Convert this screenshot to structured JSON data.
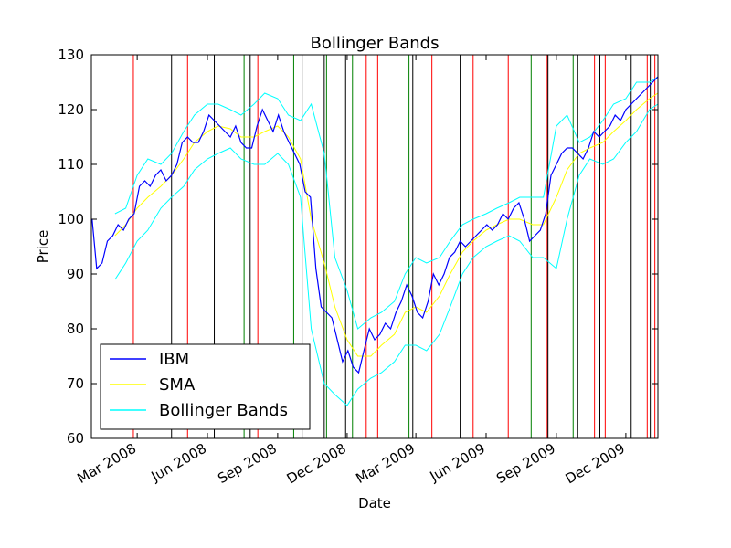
{
  "chart_data": {
    "type": "line",
    "title": "Bollinger Bands",
    "xlabel": "Date",
    "ylabel": "Price",
    "ylim": [
      60,
      130
    ],
    "xlim": [
      "2008-01-01",
      "2010-01-12"
    ],
    "grid": false,
    "legend_position": "lower-left",
    "y_ticks": [
      60,
      70,
      80,
      90,
      100,
      110,
      120,
      130
    ],
    "x_ticks": [
      {
        "date": "2008-03-01",
        "label": "Mar 2008"
      },
      {
        "date": "2008-06-01",
        "label": "Jun 2008"
      },
      {
        "date": "2008-09-01",
        "label": "Sep 2008"
      },
      {
        "date": "2008-12-01",
        "label": "Dec 2008"
      },
      {
        "date": "2009-03-01",
        "label": "Mar 2009"
      },
      {
        "date": "2009-06-01",
        "label": "Jun 2009"
      },
      {
        "date": "2009-09-01",
        "label": "Sep 2009"
      },
      {
        "date": "2009-12-01",
        "label": "Dec 2009"
      }
    ],
    "series": [
      {
        "name": "IBM",
        "color": "#0000ff",
        "points": [
          [
            "2008-01-02",
            100
          ],
          [
            "2008-01-08",
            91
          ],
          [
            "2008-01-15",
            92
          ],
          [
            "2008-01-22",
            96
          ],
          [
            "2008-01-29",
            97
          ],
          [
            "2008-02-05",
            99
          ],
          [
            "2008-02-12",
            98
          ],
          [
            "2008-02-19",
            100
          ],
          [
            "2008-02-26",
            101
          ],
          [
            "2008-03-04",
            106
          ],
          [
            "2008-03-11",
            107
          ],
          [
            "2008-03-18",
            106
          ],
          [
            "2008-03-25",
            108
          ],
          [
            "2008-04-01",
            109
          ],
          [
            "2008-04-08",
            107
          ],
          [
            "2008-04-15",
            108
          ],
          [
            "2008-04-22",
            110
          ],
          [
            "2008-04-29",
            114
          ],
          [
            "2008-05-06",
            115
          ],
          [
            "2008-05-13",
            114
          ],
          [
            "2008-05-20",
            114
          ],
          [
            "2008-05-27",
            116
          ],
          [
            "2008-06-03",
            119
          ],
          [
            "2008-06-10",
            118
          ],
          [
            "2008-06-17",
            117
          ],
          [
            "2008-06-24",
            116
          ],
          [
            "2008-07-01",
            115
          ],
          [
            "2008-07-08",
            117
          ],
          [
            "2008-07-15",
            114
          ],
          [
            "2008-07-22",
            113
          ],
          [
            "2008-07-29",
            113
          ],
          [
            "2008-08-05",
            117
          ],
          [
            "2008-08-12",
            120
          ],
          [
            "2008-08-19",
            118
          ],
          [
            "2008-08-26",
            116
          ],
          [
            "2008-09-02",
            119
          ],
          [
            "2008-09-09",
            116
          ],
          [
            "2008-09-16",
            114
          ],
          [
            "2008-09-23",
            112
          ],
          [
            "2008-09-30",
            110
          ],
          [
            "2008-10-07",
            105
          ],
          [
            "2008-10-14",
            104
          ],
          [
            "2008-10-21",
            91
          ],
          [
            "2008-10-28",
            84
          ],
          [
            "2008-11-04",
            83
          ],
          [
            "2008-11-11",
            82
          ],
          [
            "2008-11-18",
            78
          ],
          [
            "2008-11-25",
            74
          ],
          [
            "2008-12-02",
            76
          ],
          [
            "2008-12-09",
            73
          ],
          [
            "2008-12-16",
            72
          ],
          [
            "2008-12-23",
            76
          ],
          [
            "2008-12-30",
            80
          ],
          [
            "2009-01-06",
            78
          ],
          [
            "2009-01-13",
            79
          ],
          [
            "2009-01-20",
            81
          ],
          [
            "2009-01-27",
            80
          ],
          [
            "2009-02-03",
            83
          ],
          [
            "2009-02-10",
            85
          ],
          [
            "2009-02-17",
            88
          ],
          [
            "2009-02-24",
            86
          ],
          [
            "2009-03-03",
            83
          ],
          [
            "2009-03-10",
            82
          ],
          [
            "2009-03-17",
            85
          ],
          [
            "2009-03-24",
            90
          ],
          [
            "2009-03-31",
            88
          ],
          [
            "2009-04-07",
            90
          ],
          [
            "2009-04-14",
            93
          ],
          [
            "2009-04-21",
            94
          ],
          [
            "2009-04-28",
            96
          ],
          [
            "2009-05-05",
            95
          ],
          [
            "2009-05-12",
            96
          ],
          [
            "2009-05-19",
            97
          ],
          [
            "2009-05-26",
            98
          ],
          [
            "2009-06-02",
            99
          ],
          [
            "2009-06-09",
            98
          ],
          [
            "2009-06-16",
            99
          ],
          [
            "2009-06-23",
            101
          ],
          [
            "2009-06-30",
            100
          ],
          [
            "2009-07-07",
            102
          ],
          [
            "2009-07-14",
            103
          ],
          [
            "2009-07-21",
            100
          ],
          [
            "2009-07-28",
            96
          ],
          [
            "2009-08-04",
            97
          ],
          [
            "2009-08-11",
            98
          ],
          [
            "2009-08-18",
            101
          ],
          [
            "2009-08-25",
            108
          ],
          [
            "2009-09-01",
            110
          ],
          [
            "2009-09-08",
            112
          ],
          [
            "2009-09-15",
            113
          ],
          [
            "2009-09-22",
            113
          ],
          [
            "2009-09-29",
            112
          ],
          [
            "2009-10-06",
            111
          ],
          [
            "2009-10-13",
            113
          ],
          [
            "2009-10-20",
            116
          ],
          [
            "2009-10-27",
            115
          ],
          [
            "2009-11-03",
            116
          ],
          [
            "2009-11-10",
            117
          ],
          [
            "2009-11-17",
            119
          ],
          [
            "2009-11-24",
            118
          ],
          [
            "2009-12-01",
            120
          ],
          [
            "2009-12-08",
            121
          ],
          [
            "2009-12-15",
            122
          ],
          [
            "2009-12-22",
            123
          ],
          [
            "2009-12-29",
            124
          ],
          [
            "2010-01-05",
            125
          ],
          [
            "2010-01-12",
            126
          ]
        ]
      },
      {
        "name": "SMA",
        "color": "#ffff00",
        "points": [
          [
            "2008-02-01",
            97
          ],
          [
            "2008-02-15",
            99
          ],
          [
            "2008-03-01",
            102
          ],
          [
            "2008-03-15",
            104
          ],
          [
            "2008-04-01",
            106
          ],
          [
            "2008-04-15",
            108
          ],
          [
            "2008-05-01",
            111
          ],
          [
            "2008-05-15",
            114
          ],
          [
            "2008-06-01",
            116
          ],
          [
            "2008-06-15",
            117
          ],
          [
            "2008-07-01",
            116.5
          ],
          [
            "2008-07-15",
            115
          ],
          [
            "2008-08-01",
            115
          ],
          [
            "2008-08-15",
            116
          ],
          [
            "2008-09-01",
            117
          ],
          [
            "2008-09-15",
            115
          ],
          [
            "2008-10-01",
            111
          ],
          [
            "2008-10-15",
            100
          ],
          [
            "2008-11-01",
            92
          ],
          [
            "2008-11-15",
            84
          ],
          [
            "2008-12-01",
            78
          ],
          [
            "2008-12-15",
            75
          ],
          [
            "2009-01-01",
            75
          ],
          [
            "2009-01-15",
            77
          ],
          [
            "2009-02-01",
            79
          ],
          [
            "2009-02-15",
            83
          ],
          [
            "2009-03-01",
            84
          ],
          [
            "2009-03-15",
            83
          ],
          [
            "2009-04-01",
            86
          ],
          [
            "2009-04-15",
            90
          ],
          [
            "2009-05-01",
            94
          ],
          [
            "2009-05-15",
            96
          ],
          [
            "2009-06-01",
            98
          ],
          [
            "2009-06-15",
            99
          ],
          [
            "2009-07-01",
            100
          ],
          [
            "2009-07-15",
            100
          ],
          [
            "2009-08-01",
            99
          ],
          [
            "2009-08-15",
            99
          ],
          [
            "2009-09-01",
            104
          ],
          [
            "2009-09-15",
            109
          ],
          [
            "2009-10-01",
            112
          ],
          [
            "2009-10-15",
            113
          ],
          [
            "2009-11-01",
            114
          ],
          [
            "2009-11-15",
            116
          ],
          [
            "2009-12-01",
            118
          ],
          [
            "2009-12-15",
            120
          ],
          [
            "2010-01-01",
            122
          ],
          [
            "2010-01-12",
            123
          ]
        ]
      },
      {
        "name": "Bollinger Bands",
        "color": "#00ffff",
        "upper": [
          [
            "2008-02-01",
            101
          ],
          [
            "2008-02-15",
            102
          ],
          [
            "2008-03-01",
            108
          ],
          [
            "2008-03-15",
            111
          ],
          [
            "2008-04-01",
            110
          ],
          [
            "2008-04-15",
            112
          ],
          [
            "2008-05-01",
            116
          ],
          [
            "2008-05-15",
            119
          ],
          [
            "2008-06-01",
            121
          ],
          [
            "2008-06-15",
            121
          ],
          [
            "2008-07-01",
            120
          ],
          [
            "2008-07-15",
            119
          ],
          [
            "2008-08-01",
            121
          ],
          [
            "2008-08-15",
            123
          ],
          [
            "2008-09-01",
            122
          ],
          [
            "2008-09-15",
            119
          ],
          [
            "2008-10-01",
            118
          ],
          [
            "2008-10-15",
            121
          ],
          [
            "2008-11-01",
            112
          ],
          [
            "2008-11-15",
            93
          ],
          [
            "2008-12-01",
            87
          ],
          [
            "2008-12-15",
            80
          ],
          [
            "2009-01-01",
            82
          ],
          [
            "2009-01-15",
            83
          ],
          [
            "2009-02-01",
            85
          ],
          [
            "2009-02-15",
            90
          ],
          [
            "2009-03-01",
            93
          ],
          [
            "2009-03-15",
            92
          ],
          [
            "2009-04-01",
            93
          ],
          [
            "2009-04-15",
            96
          ],
          [
            "2009-05-01",
            99
          ],
          [
            "2009-05-15",
            100
          ],
          [
            "2009-06-01",
            101
          ],
          [
            "2009-06-15",
            102
          ],
          [
            "2009-07-01",
            103
          ],
          [
            "2009-07-15",
            104
          ],
          [
            "2009-08-01",
            104
          ],
          [
            "2009-08-15",
            104
          ],
          [
            "2009-09-01",
            117
          ],
          [
            "2009-09-15",
            119
          ],
          [
            "2009-10-01",
            114
          ],
          [
            "2009-10-15",
            115
          ],
          [
            "2009-11-01",
            118
          ],
          [
            "2009-11-15",
            121
          ],
          [
            "2009-12-01",
            122
          ],
          [
            "2009-12-15",
            125
          ],
          [
            "2010-01-01",
            125
          ],
          [
            "2010-01-12",
            126
          ]
        ],
        "lower": [
          [
            "2008-02-01",
            89
          ],
          [
            "2008-02-15",
            92
          ],
          [
            "2008-03-01",
            96
          ],
          [
            "2008-03-15",
            98
          ],
          [
            "2008-04-01",
            102
          ],
          [
            "2008-04-15",
            104
          ],
          [
            "2008-05-01",
            106
          ],
          [
            "2008-05-15",
            109
          ],
          [
            "2008-06-01",
            111
          ],
          [
            "2008-06-15",
            112
          ],
          [
            "2008-07-01",
            113
          ],
          [
            "2008-07-15",
            111
          ],
          [
            "2008-08-01",
            110
          ],
          [
            "2008-08-15",
            110
          ],
          [
            "2008-09-01",
            112
          ],
          [
            "2008-09-15",
            110
          ],
          [
            "2008-10-01",
            104
          ],
          [
            "2008-10-15",
            80
          ],
          [
            "2008-11-01",
            70
          ],
          [
            "2008-11-15",
            68
          ],
          [
            "2008-12-01",
            66
          ],
          [
            "2008-12-15",
            69
          ],
          [
            "2009-01-01",
            71
          ],
          [
            "2009-01-15",
            72
          ],
          [
            "2009-02-01",
            74
          ],
          [
            "2009-02-15",
            77
          ],
          [
            "2009-03-01",
            77
          ],
          [
            "2009-03-15",
            76
          ],
          [
            "2009-04-01",
            79
          ],
          [
            "2009-04-15",
            84
          ],
          [
            "2009-05-01",
            90
          ],
          [
            "2009-05-15",
            93
          ],
          [
            "2009-06-01",
            95
          ],
          [
            "2009-06-15",
            96
          ],
          [
            "2009-07-01",
            97
          ],
          [
            "2009-07-15",
            96
          ],
          [
            "2009-08-01",
            93
          ],
          [
            "2009-08-15",
            93
          ],
          [
            "2009-09-01",
            91
          ],
          [
            "2009-09-15",
            100
          ],
          [
            "2009-10-01",
            108
          ],
          [
            "2009-10-15",
            111
          ],
          [
            "2009-11-01",
            110
          ],
          [
            "2009-11-15",
            111
          ],
          [
            "2009-12-01",
            114
          ],
          [
            "2009-12-15",
            116
          ],
          [
            "2010-01-01",
            120
          ],
          [
            "2010-01-12",
            121
          ]
        ]
      }
    ],
    "vertical_lines": {
      "red": [
        "2008-02-25",
        "2008-05-06",
        "2008-08-06",
        "2008-12-26",
        "2009-01-10",
        "2009-03-22",
        "2009-05-15",
        "2009-06-30",
        "2009-08-20",
        "2009-10-21",
        "2009-11-04",
        "2009-12-29",
        "2010-01-08"
      ],
      "green": [
        "2008-07-19",
        "2008-09-22",
        "2008-11-04",
        "2008-12-08",
        "2009-02-20",
        "2009-07-30",
        "2009-09-23"
      ],
      "black": [
        "2008-04-15",
        "2008-06-10",
        "2008-07-27",
        "2008-10-03",
        "2008-11-01",
        "2008-11-29",
        "2009-02-25",
        "2009-04-28",
        "2009-08-21",
        "2009-09-29",
        "2009-10-28",
        "2009-12-08",
        "2010-01-02"
      ]
    },
    "legend": [
      "IBM",
      "SMA",
      "Bollinger Bands"
    ]
  }
}
